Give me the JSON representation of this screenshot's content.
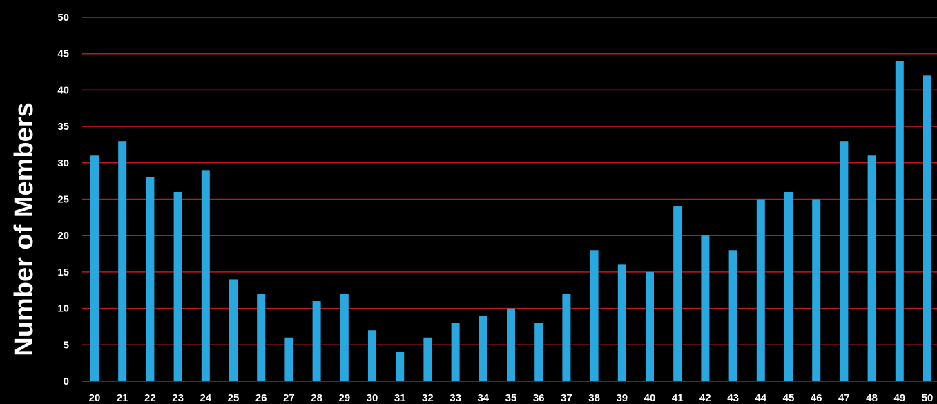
{
  "chart_data": {
    "type": "bar",
    "title": "",
    "xlabel": "",
    "ylabel": "Number of Members",
    "ylim": [
      0,
      50
    ],
    "yticks": [
      0,
      5,
      10,
      15,
      20,
      25,
      30,
      35,
      40,
      45,
      50
    ],
    "grid": true,
    "legend": "none",
    "categories": [
      "20",
      "21",
      "22",
      "23",
      "24",
      "25",
      "26",
      "27",
      "28",
      "29",
      "30",
      "31",
      "32",
      "33",
      "34",
      "35",
      "36",
      "37",
      "38",
      "39",
      "40",
      "41",
      "42",
      "43",
      "44",
      "45",
      "46",
      "47",
      "48",
      "49",
      "50"
    ],
    "values": [
      31,
      33,
      28,
      26,
      29,
      14,
      12,
      6,
      11,
      12,
      7,
      4,
      6,
      8,
      9,
      10,
      8,
      12,
      18,
      16,
      15,
      24,
      20,
      18,
      25,
      26,
      25,
      33,
      31,
      44,
      42
    ],
    "colors": {
      "background": "#000000",
      "bar": "#29a8e0",
      "grid": "#c0161c",
      "text": "#ffffff"
    }
  }
}
